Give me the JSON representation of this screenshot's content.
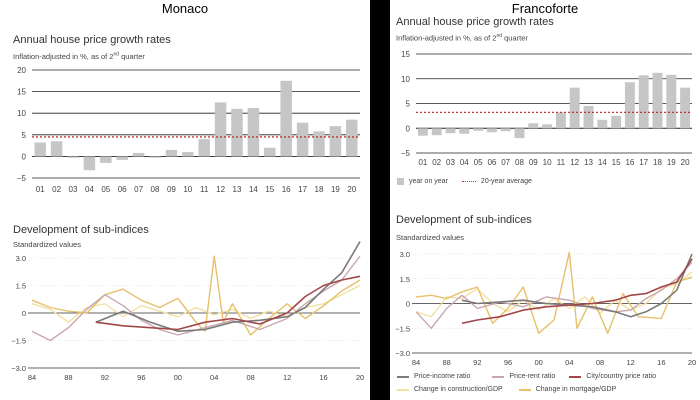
{
  "colors": {
    "bar": "#c6c6c6",
    "avg": "#c0392b",
    "grid": "#222222",
    "price_income": "#7a7a7a",
    "price_rent": "#c8a8ad",
    "city_country": "#a1474a",
    "construction": "#f3e0a4",
    "mortgage": "#e6c06a"
  },
  "panels": [
    {
      "city": "Monaco",
      "bar_title": "Annual house price growth rates",
      "bar_subtitle": "Inflation-adjusted in %, as of 2nd quarter",
      "line_title": "Development of sub-indices",
      "line_subtitle": "Standardized values"
    },
    {
      "city": "Francoforte",
      "bar_title": "Annual house price growth rates",
      "bar_subtitle": "Inflation-adjusted in %, as of 2nd quarter",
      "line_title": "Development of sub-indices",
      "line_subtitle": "Standardized values",
      "bar_legend": [
        "year on year",
        "20-year average"
      ],
      "line_legend": [
        "Price-income ratio",
        "Price-rent ratio",
        "City/country price ratio",
        "Change in construction/GDP",
        "Change in mortgage/GDP"
      ]
    }
  ],
  "chart_data": [
    {
      "type": "bar",
      "title": "Annual house price growth rates",
      "subtitle": "Inflation-adjusted in %, as of 2nd quarter",
      "categories": [
        "01",
        "02",
        "03",
        "04",
        "05",
        "06",
        "07",
        "08",
        "09",
        "10",
        "11",
        "12",
        "13",
        "14",
        "15",
        "16",
        "17",
        "18",
        "19",
        "20"
      ],
      "values": [
        3.2,
        3.5,
        -0.3,
        -3.2,
        -1.5,
        -0.8,
        0.8,
        -0.3,
        1.5,
        1.0,
        4.0,
        12.5,
        11.0,
        11.2,
        2.0,
        17.5,
        7.8,
        5.8,
        7.0,
        8.5
      ],
      "reference_line": 4.5,
      "ylim": [
        -5,
        20
      ],
      "yticks": [
        -5,
        0,
        5,
        10,
        15,
        20
      ],
      "grid": true
    },
    {
      "type": "line",
      "title": "Development of sub-indices",
      "subtitle": "Standardized values",
      "ylim": [
        -3.0,
        3.0
      ],
      "yticks": [
        -3.0,
        -1.5,
        0,
        1.5,
        3.0
      ],
      "xticks": [
        "84",
        "88",
        "92",
        "96",
        "00",
        "04",
        "08",
        "12",
        "16",
        "20"
      ],
      "xrange": [
        1984,
        2020
      ],
      "series": [
        {
          "values": [
            [
              1991,
              -0.5
            ],
            [
              1994,
              0.1
            ],
            [
              1997,
              -0.5
            ],
            [
              2000,
              -1.0
            ],
            [
              2003,
              -0.9
            ],
            [
              2006,
              -0.5
            ],
            [
              2009,
              -0.4
            ],
            [
              2012,
              -0.2
            ],
            [
              2014,
              0.3
            ],
            [
              2016,
              1.3
            ],
            [
              2018,
              2.2
            ],
            [
              2020,
              3.9
            ]
          ]
        },
        {
          "values": [
            [
              1984,
              -1.0
            ],
            [
              1986,
              -1.5
            ],
            [
              1988,
              -0.8
            ],
            [
              1990,
              0.2
            ],
            [
              1992,
              1.0
            ],
            [
              1994,
              0.4
            ],
            [
              1996,
              -0.4
            ],
            [
              1998,
              -0.9
            ],
            [
              2000,
              -1.2
            ],
            [
              2003,
              -0.8
            ],
            [
              2006,
              -0.4
            ],
            [
              2009,
              -0.9
            ],
            [
              2012,
              -0.3
            ],
            [
              2014,
              0.5
            ],
            [
              2016,
              1.2
            ],
            [
              2018,
              1.8
            ],
            [
              2020,
              3.1
            ]
          ]
        },
        {
          "values": [
            [
              1991,
              -0.5
            ],
            [
              1994,
              -0.7
            ],
            [
              1997,
              -0.8
            ],
            [
              2000,
              -0.9
            ],
            [
              2003,
              -0.5
            ],
            [
              2006,
              -0.3
            ],
            [
              2009,
              -0.6
            ],
            [
              2012,
              0.0
            ],
            [
              2014,
              0.9
            ],
            [
              2016,
              1.5
            ],
            [
              2018,
              1.8
            ],
            [
              2020,
              2.0
            ]
          ]
        },
        {
          "values": [
            [
              1984,
              0.5
            ],
            [
              1986,
              0.2
            ],
            [
              1988,
              -0.5
            ],
            [
              1990,
              0.3
            ],
            [
              1992,
              0.5
            ],
            [
              1994,
              -0.2
            ],
            [
              1996,
              0.4
            ],
            [
              1998,
              0.1
            ],
            [
              2000,
              -0.2
            ],
            [
              2002,
              0.3
            ],
            [
              2004,
              -0.1
            ],
            [
              2006,
              0.2
            ],
            [
              2008,
              -0.3
            ],
            [
              2010,
              0.1
            ],
            [
              2012,
              -0.2
            ],
            [
              2014,
              0.3
            ],
            [
              2016,
              0.5
            ],
            [
              2018,
              1.0
            ],
            [
              2020,
              1.5
            ]
          ]
        },
        {
          "values": [
            [
              1984,
              0.7
            ],
            [
              1986,
              0.3
            ],
            [
              1988,
              0.1
            ],
            [
              1990,
              0.0
            ],
            [
              1992,
              1.0
            ],
            [
              1994,
              1.3
            ],
            [
              1996,
              0.7
            ],
            [
              1998,
              0.3
            ],
            [
              2000,
              0.8
            ],
            [
              2002,
              -0.5
            ],
            [
              2003,
              -1.0
            ],
            [
              2004,
              3.1
            ],
            [
              2005,
              -0.5
            ],
            [
              2006,
              0.5
            ],
            [
              2008,
              -1.2
            ],
            [
              2010,
              -0.3
            ],
            [
              2012,
              0.5
            ],
            [
              2014,
              -0.3
            ],
            [
              2016,
              0.4
            ],
            [
              2018,
              1.2
            ],
            [
              2020,
              1.8
            ]
          ]
        }
      ]
    },
    {
      "type": "bar",
      "title": "Annual house price growth rates",
      "subtitle": "Inflation-adjusted in %, as of 2nd quarter",
      "categories": [
        "01",
        "02",
        "03",
        "04",
        "05",
        "06",
        "07",
        "08",
        "09",
        "10",
        "11",
        "12",
        "13",
        "14",
        "15",
        "16",
        "17",
        "18",
        "19",
        "20"
      ],
      "values": [
        -1.5,
        -1.4,
        -1.0,
        -1.1,
        -0.5,
        -0.8,
        -0.6,
        -2.0,
        1.0,
        0.8,
        3.2,
        8.2,
        4.5,
        1.7,
        2.5,
        9.3,
        10.7,
        11.2,
        10.8,
        8.2
      ],
      "reference_line": 3.2,
      "ylim": [
        -5,
        15
      ],
      "yticks": [
        -5,
        0,
        5,
        10,
        15
      ],
      "grid": true,
      "legend": [
        "year on year",
        "20-year average"
      ],
      "legend_position": "bottom-left"
    },
    {
      "type": "line",
      "title": "Development of sub-indices",
      "subtitle": "Standardized values",
      "ylim": [
        -3.0,
        3.0
      ],
      "yticks": [
        -3.0,
        -1.5,
        0,
        1.5,
        3.0
      ],
      "xticks": [
        "84",
        "88",
        "92",
        "96",
        "00",
        "04",
        "08",
        "12",
        "16",
        "20"
      ],
      "xrange": [
        1984,
        2020
      ],
      "legend_position": "bottom",
      "series": [
        {
          "name": "Price-income ratio",
          "values": [
            [
              1990,
              0.2
            ],
            [
              1992,
              0.0
            ],
            [
              1995,
              0.1
            ],
            [
              1998,
              0.2
            ],
            [
              2001,
              0.0
            ],
            [
              2004,
              -0.1
            ],
            [
              2007,
              -0.2
            ],
            [
              2010,
              -0.5
            ],
            [
              2012,
              -0.8
            ],
            [
              2014,
              -0.5
            ],
            [
              2016,
              0.0
            ],
            [
              2018,
              0.8
            ],
            [
              2020,
              3.0
            ]
          ]
        },
        {
          "name": "Price-rent ratio",
          "values": [
            [
              1984,
              -0.5
            ],
            [
              1986,
              -1.5
            ],
            [
              1988,
              -0.3
            ],
            [
              1990,
              0.5
            ],
            [
              1992,
              -0.3
            ],
            [
              1995,
              0.1
            ],
            [
              1998,
              -0.2
            ],
            [
              2001,
              0.4
            ],
            [
              2004,
              0.2
            ],
            [
              2007,
              -0.3
            ],
            [
              2010,
              -0.5
            ],
            [
              2012,
              -0.4
            ],
            [
              2014,
              0.3
            ],
            [
              2016,
              0.8
            ],
            [
              2018,
              1.5
            ],
            [
              2020,
              2.5
            ]
          ]
        },
        {
          "name": "City/country price ratio",
          "values": [
            [
              1990,
              -1.2
            ],
            [
              1992,
              -1.0
            ],
            [
              1995,
              -0.8
            ],
            [
              1998,
              -0.4
            ],
            [
              2001,
              -0.2
            ],
            [
              2004,
              -0.1
            ],
            [
              2007,
              0.0
            ],
            [
              2010,
              0.2
            ],
            [
              2012,
              0.5
            ],
            [
              2014,
              0.6
            ],
            [
              2016,
              1.0
            ],
            [
              2018,
              1.3
            ],
            [
              2020,
              2.7
            ]
          ]
        },
        {
          "name": "Change in construction/GDP",
          "values": [
            [
              1984,
              -0.5
            ],
            [
              1986,
              -0.8
            ],
            [
              1988,
              0.4
            ],
            [
              1990,
              0.3
            ],
            [
              1992,
              0.9
            ],
            [
              1994,
              0.0
            ],
            [
              1996,
              -0.5
            ],
            [
              1998,
              0.2
            ],
            [
              2000,
              -0.4
            ],
            [
              2002,
              0.3
            ],
            [
              2004,
              -0.3
            ],
            [
              2006,
              0.4
            ],
            [
              2008,
              -0.6
            ],
            [
              2010,
              0.2
            ],
            [
              2012,
              -0.4
            ],
            [
              2014,
              0.0
            ],
            [
              2016,
              0.9
            ],
            [
              2018,
              1.2
            ],
            [
              2020,
              1.9
            ]
          ]
        },
        {
          "name": "Change in mortgage/GDP",
          "values": [
            [
              1984,
              0.4
            ],
            [
              1986,
              0.5
            ],
            [
              1988,
              0.3
            ],
            [
              1990,
              0.7
            ],
            [
              1992,
              1.0
            ],
            [
              1994,
              -1.2
            ],
            [
              1996,
              -0.3
            ],
            [
              1998,
              1.0
            ],
            [
              2000,
              -1.8
            ],
            [
              2002,
              -1.0
            ],
            [
              2004,
              3.1
            ],
            [
              2005,
              -1.5
            ],
            [
              2007,
              0.4
            ],
            [
              2009,
              -1.8
            ],
            [
              2011,
              0.6
            ],
            [
              2013,
              -0.8
            ],
            [
              2016,
              -0.9
            ],
            [
              2018,
              1.3
            ],
            [
              2020,
              1.6
            ]
          ]
        }
      ]
    }
  ]
}
